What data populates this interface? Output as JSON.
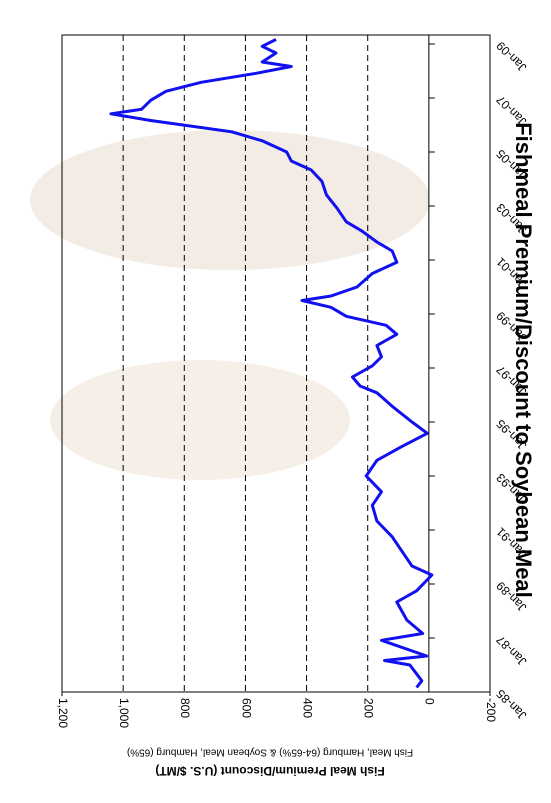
{
  "chart_data": {
    "type": "line",
    "title": "Fishmeal Premium/Discount to Soybean Meal",
    "y_label": "Fish Meal Premium/Discount (U.S. $/MT)",
    "y_sublabel": "Fish Meal, Hamburg (64-65%) & Soybean Meal, Hamburg (65%)",
    "x": [
      "1985-03",
      "1985-06",
      "1986-01",
      "1986-03",
      "1986-05",
      "1986-12",
      "1987-03",
      "1987-09",
      "1988-05",
      "1988-10",
      "1989-05",
      "1989-09",
      "1990-04",
      "1990-10",
      "1991-05",
      "1991-12",
      "1992-06",
      "1993-01",
      "1993-08",
      "1994-02",
      "1994-08",
      "1995-01",
      "1995-08",
      "1996-02",
      "1996-05",
      "1996-09",
      "1997-02",
      "1997-06",
      "1997-11",
      "1998-04",
      "1998-08",
      "1998-12",
      "1999-04",
      "1999-07",
      "1999-09",
      "2000-01",
      "2000-07",
      "2000-12",
      "2001-05",
      "2001-09",
      "2002-02",
      "2002-06",
      "2002-12",
      "2003-06",
      "2003-12",
      "2004-05",
      "2004-09",
      "2005-01",
      "2005-06",
      "2005-10",
      "2006-03",
      "2006-06",
      "2006-08",
      "2006-12",
      "2007-04",
      "2007-08",
      "2007-12",
      "2008-03",
      "2008-05",
      "2008-09",
      "2008-12",
      "2009-03"
    ],
    "series": [
      {
        "name": "Premium/Discount",
        "color": "#1010f0",
        "values": [
          40,
          23,
          62,
          145,
          7,
          155,
          20,
          72,
          105,
          40,
          -10,
          55,
          90,
          120,
          170,
          185,
          155,
          205,
          170,
          90,
          5,
          55,
          120,
          170,
          225,
          250,
          185,
          155,
          170,
          105,
          140,
          270,
          320,
          415,
          320,
          235,
          185,
          105,
          120,
          170,
          220,
          270,
          300,
          335,
          350,
          385,
          450,
          465,
          545,
          645,
          910,
          1040,
          940,
          910,
          860,
          745,
          565,
          450,
          545,
          500,
          545,
          500
        ]
      }
    ],
    "xlim": [
      "1985-01",
      "2009-05"
    ],
    "xticks": [
      {
        "value": "1985-01",
        "label": "Jan-85"
      },
      {
        "value": "1987-01",
        "label": "Jan-87"
      },
      {
        "value": "1989-01",
        "label": "Jan-89"
      },
      {
        "value": "1991-01",
        "label": "Jan-91"
      },
      {
        "value": "1993-01",
        "label": "Jan-93"
      },
      {
        "value": "1995-01",
        "label": "Jan-95"
      },
      {
        "value": "1997-01",
        "label": "Jan-97"
      },
      {
        "value": "1999-01",
        "label": "Jan-99"
      },
      {
        "value": "2001-01",
        "label": "Jan-01"
      },
      {
        "value": "2003-01",
        "label": "Jan-03"
      },
      {
        "value": "2005-01",
        "label": "Jan-05"
      },
      {
        "value": "2007-01",
        "label": "Jan-07"
      },
      {
        "value": "2009-01",
        "label": "Jan-09"
      }
    ],
    "ylim": [
      -200,
      1200
    ],
    "yticks": [
      -200,
      0,
      200,
      400,
      600,
      800,
      {
        "value": 1000,
        "label": "1,000"
      },
      {
        "value": 1200,
        "label": "1,200"
      }
    ],
    "grid": true
  }
}
